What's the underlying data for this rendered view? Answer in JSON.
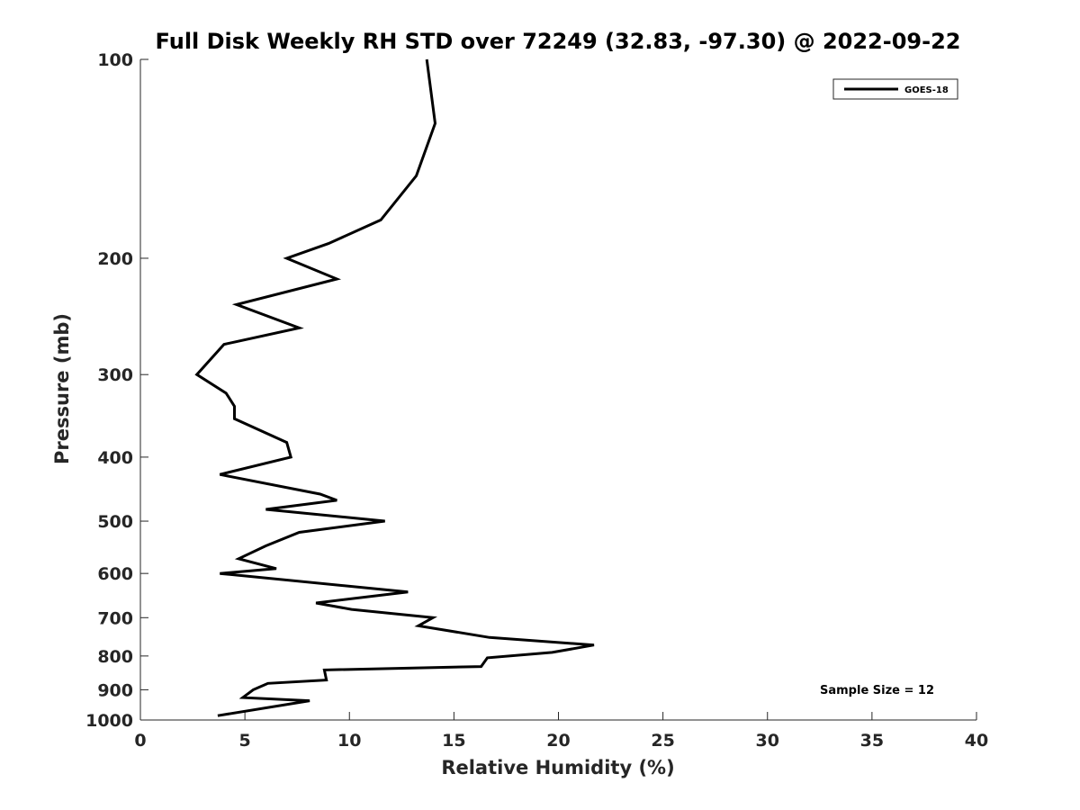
{
  "chart_data": {
    "type": "line",
    "title": "Full Disk Weekly RH STD over 72249 (32.83, -97.30) @ 2022-09-22",
    "xlabel": "Relative Humidity (%)",
    "ylabel": "Pressure (mb)",
    "xlim": [
      0,
      40
    ],
    "ylim": [
      100,
      1000
    ],
    "y_scale": "log",
    "y_reversed": true,
    "x_ticks": [
      0,
      5,
      10,
      15,
      20,
      25,
      30,
      35,
      40
    ],
    "y_ticks": [
      100,
      200,
      300,
      400,
      500,
      600,
      700,
      800,
      900,
      1000
    ],
    "grid": false,
    "legend_position": "top-right",
    "series": [
      {
        "name": "GOES-18",
        "color": "#000000",
        "points": [
          [
            13.7,
            100
          ],
          [
            14.1,
            125
          ],
          [
            13.2,
            150
          ],
          [
            11.5,
            175
          ],
          [
            9.0,
            190
          ],
          [
            7.0,
            200
          ],
          [
            9.4,
            215
          ],
          [
            4.6,
            235
          ],
          [
            7.6,
            255
          ],
          [
            4.0,
            270
          ],
          [
            2.7,
            300
          ],
          [
            4.1,
            320
          ],
          [
            4.5,
            335
          ],
          [
            4.5,
            350
          ],
          [
            7.0,
            380
          ],
          [
            7.2,
            400
          ],
          [
            3.8,
            425
          ],
          [
            8.6,
            455
          ],
          [
            9.4,
            465
          ],
          [
            6.0,
            480
          ],
          [
            11.7,
            500
          ],
          [
            7.6,
            520
          ],
          [
            6.0,
            545
          ],
          [
            4.7,
            570
          ],
          [
            6.5,
            590
          ],
          [
            3.8,
            600
          ],
          [
            12.8,
            640
          ],
          [
            8.4,
            665
          ],
          [
            10.1,
            680
          ],
          [
            14.0,
            700
          ],
          [
            13.3,
            720
          ],
          [
            16.7,
            750
          ],
          [
            21.7,
            770
          ],
          [
            19.7,
            790
          ],
          [
            16.6,
            805
          ],
          [
            16.3,
            830
          ],
          [
            8.8,
            840
          ],
          [
            8.9,
            870
          ],
          [
            6.1,
            880
          ],
          [
            5.4,
            900
          ],
          [
            4.9,
            925
          ],
          [
            8.1,
            935
          ],
          [
            3.7,
            985
          ]
        ]
      }
    ],
    "annotations": [
      "Sample Size = 12"
    ]
  }
}
